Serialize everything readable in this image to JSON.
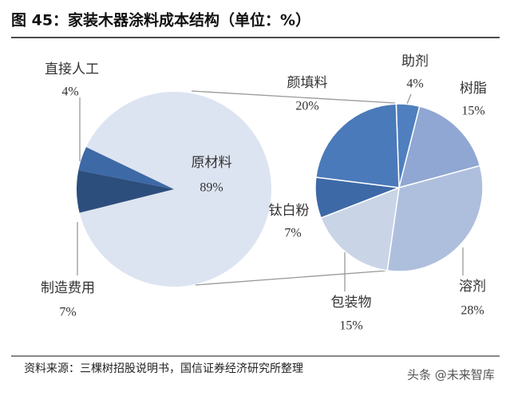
{
  "header": {
    "title": "图 45：家装木器涂料成本结构（单位：%）"
  },
  "chart_data": [
    {
      "type": "pie",
      "categories": [
        "原材料",
        "直接人工",
        "制造费用"
      ],
      "values": [
        89,
        4,
        7
      ],
      "value_labels": [
        "89%",
        "4%",
        "7%"
      ],
      "colors": [
        "#dde4f1",
        "#3d69a6",
        "#2c4e7d"
      ]
    },
    {
      "type": "pie",
      "categories": [
        "助剂",
        "树脂",
        "溶剂",
        "包装物",
        "钛白粉",
        "颜填料"
      ],
      "values": [
        4,
        15,
        28,
        15,
        7,
        20
      ],
      "value_labels": [
        "4%",
        "15%",
        "28%",
        "15%",
        "7%",
        "20%"
      ],
      "colors": [
        "#4f7fbf",
        "#8fa7d2",
        "#aebfdd",
        "#c9d4e7",
        "#3e69a7",
        "#4a7ab9"
      ]
    }
  ],
  "source": "资料来源：三棵树招股说明书，国信证券经济研究所整理",
  "watermark": "头条 @未来智库"
}
